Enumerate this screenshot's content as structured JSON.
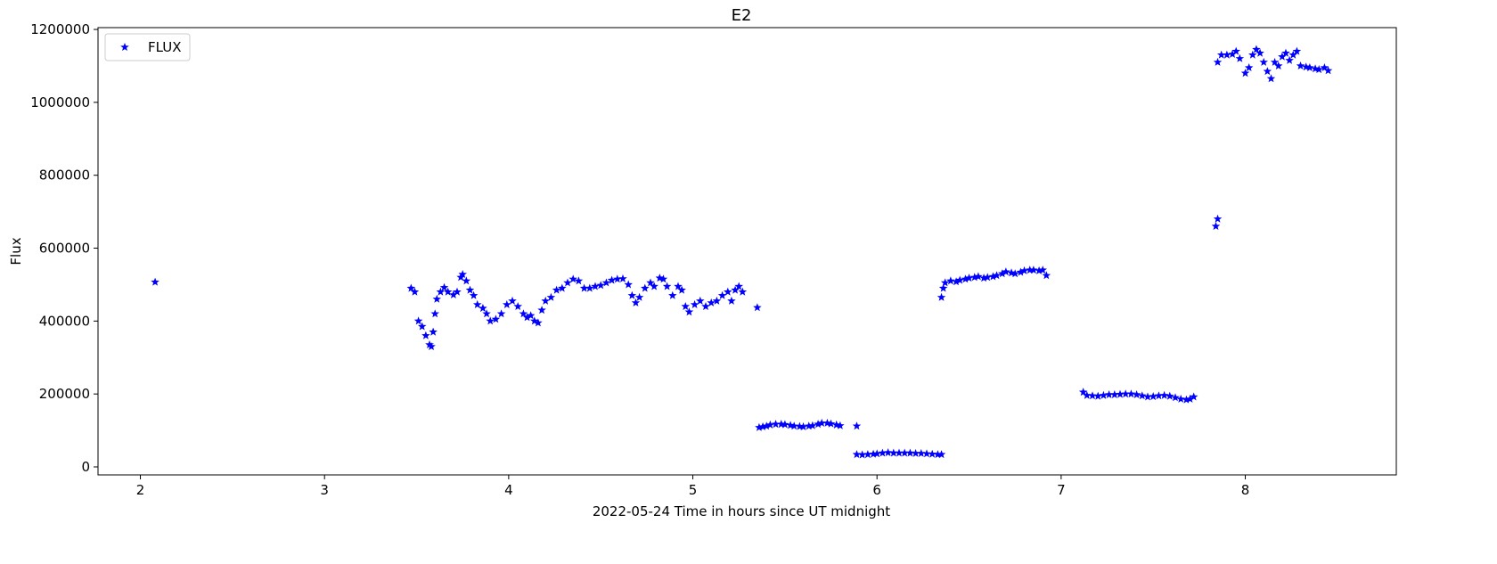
{
  "chart_data": {
    "type": "scatter",
    "title": "E2",
    "xlabel": "2022-05-24  Time in hours since UT midnight",
    "ylabel": "Flux",
    "xlim": [
      1.77,
      8.82
    ],
    "ylim": [
      -22000,
      1205000
    ],
    "xticks": [
      2,
      3,
      4,
      5,
      6,
      7,
      8
    ],
    "xtick_labels": [
      "2",
      "3",
      "4",
      "5",
      "6",
      "7",
      "8"
    ],
    "yticks": [
      0,
      200000,
      400000,
      600000,
      800000,
      1000000,
      1200000
    ],
    "ytick_labels": [
      "0",
      "200000",
      "400000",
      "600000",
      "800000",
      "1000000",
      "1200000"
    ],
    "grid": false,
    "legend": {
      "placement": "top-left",
      "entries": [
        "FLUX"
      ]
    },
    "series": [
      {
        "name": "FLUX",
        "color": "#0000ff",
        "marker": "star",
        "points": [
          [
            2.08,
            507000
          ],
          [
            3.47,
            490000
          ],
          [
            3.49,
            480000
          ],
          [
            3.51,
            400000
          ],
          [
            3.53,
            385000
          ],
          [
            3.55,
            360000
          ],
          [
            3.57,
            335000
          ],
          [
            3.58,
            330000
          ],
          [
            3.59,
            370000
          ],
          [
            3.6,
            420000
          ],
          [
            3.61,
            460000
          ],
          [
            3.63,
            480000
          ],
          [
            3.65,
            492000
          ],
          [
            3.67,
            480000
          ],
          [
            3.7,
            472000
          ],
          [
            3.72,
            480000
          ],
          [
            3.74,
            520000
          ],
          [
            3.75,
            528000
          ],
          [
            3.77,
            510000
          ],
          [
            3.79,
            485000
          ],
          [
            3.81,
            470000
          ],
          [
            3.83,
            445000
          ],
          [
            3.86,
            435000
          ],
          [
            3.88,
            420000
          ],
          [
            3.9,
            400000
          ],
          [
            3.93,
            405000
          ],
          [
            3.96,
            420000
          ],
          [
            3.99,
            445000
          ],
          [
            4.02,
            455000
          ],
          [
            4.05,
            440000
          ],
          [
            4.08,
            420000
          ],
          [
            4.1,
            410000
          ],
          [
            4.12,
            415000
          ],
          [
            4.14,
            400000
          ],
          [
            4.16,
            395000
          ],
          [
            4.18,
            430000
          ],
          [
            4.2,
            455000
          ],
          [
            4.23,
            465000
          ],
          [
            4.26,
            485000
          ],
          [
            4.29,
            490000
          ],
          [
            4.32,
            505000
          ],
          [
            4.35,
            515000
          ],
          [
            4.38,
            510000
          ],
          [
            4.41,
            490000
          ],
          [
            4.44,
            490000
          ],
          [
            4.47,
            495000
          ],
          [
            4.5,
            498000
          ],
          [
            4.53,
            505000
          ],
          [
            4.56,
            512000
          ],
          [
            4.59,
            515000
          ],
          [
            4.62,
            516000
          ],
          [
            4.65,
            500000
          ],
          [
            4.67,
            470000
          ],
          [
            4.69,
            450000
          ],
          [
            4.71,
            465000
          ],
          [
            4.74,
            490000
          ],
          [
            4.77,
            505000
          ],
          [
            4.79,
            495000
          ],
          [
            4.82,
            518000
          ],
          [
            4.84,
            515000
          ],
          [
            4.86,
            495000
          ],
          [
            4.89,
            470000
          ],
          [
            4.92,
            495000
          ],
          [
            4.94,
            485000
          ],
          [
            4.96,
            440000
          ],
          [
            4.98,
            425000
          ],
          [
            5.01,
            445000
          ],
          [
            5.04,
            455000
          ],
          [
            5.07,
            440000
          ],
          [
            5.1,
            450000
          ],
          [
            5.13,
            455000
          ],
          [
            5.16,
            470000
          ],
          [
            5.19,
            480000
          ],
          [
            5.21,
            455000
          ],
          [
            5.23,
            485000
          ],
          [
            5.25,
            495000
          ],
          [
            5.27,
            480000
          ],
          [
            5.35,
            437000
          ],
          [
            5.36,
            108000
          ],
          [
            5.38,
            110000
          ],
          [
            5.4,
            112000
          ],
          [
            5.42,
            115000
          ],
          [
            5.45,
            117000
          ],
          [
            5.48,
            117000
          ],
          [
            5.5,
            116000
          ],
          [
            5.53,
            114000
          ],
          [
            5.55,
            112000
          ],
          [
            5.58,
            111000
          ],
          [
            5.6,
            110000
          ],
          [
            5.63,
            112000
          ],
          [
            5.65,
            113000
          ],
          [
            5.68,
            117000
          ],
          [
            5.7,
            120000
          ],
          [
            5.73,
            120000
          ],
          [
            5.75,
            118000
          ],
          [
            5.78,
            115000
          ],
          [
            5.8,
            113000
          ],
          [
            5.89,
            112000
          ],
          [
            5.89,
            34000
          ],
          [
            5.92,
            33000
          ],
          [
            5.95,
            34000
          ],
          [
            5.98,
            35000
          ],
          [
            6.0,
            36000
          ],
          [
            6.03,
            38000
          ],
          [
            6.06,
            39000
          ],
          [
            6.09,
            38000
          ],
          [
            6.12,
            38000
          ],
          [
            6.15,
            38000
          ],
          [
            6.18,
            38000
          ],
          [
            6.21,
            37000
          ],
          [
            6.24,
            37000
          ],
          [
            6.27,
            36000
          ],
          [
            6.3,
            35000
          ],
          [
            6.33,
            34000
          ],
          [
            6.35,
            34000
          ],
          [
            6.35,
            465000
          ],
          [
            6.36,
            490000
          ],
          [
            6.37,
            505000
          ],
          [
            6.4,
            510000
          ],
          [
            6.43,
            508000
          ],
          [
            6.45,
            512000
          ],
          [
            6.48,
            515000
          ],
          [
            6.5,
            518000
          ],
          [
            6.53,
            520000
          ],
          [
            6.55,
            522000
          ],
          [
            6.58,
            518000
          ],
          [
            6.6,
            520000
          ],
          [
            6.63,
            522000
          ],
          [
            6.65,
            525000
          ],
          [
            6.68,
            530000
          ],
          [
            6.7,
            535000
          ],
          [
            6.73,
            532000
          ],
          [
            6.75,
            530000
          ],
          [
            6.78,
            534000
          ],
          [
            6.8,
            538000
          ],
          [
            6.83,
            540000
          ],
          [
            6.85,
            540000
          ],
          [
            6.88,
            538000
          ],
          [
            6.9,
            540000
          ],
          [
            6.92,
            525000
          ],
          [
            7.12,
            205000
          ],
          [
            7.14,
            196000
          ],
          [
            7.17,
            195000
          ],
          [
            7.2,
            194000
          ],
          [
            7.23,
            196000
          ],
          [
            7.26,
            198000
          ],
          [
            7.29,
            198000
          ],
          [
            7.32,
            199000
          ],
          [
            7.35,
            200000
          ],
          [
            7.38,
            200000
          ],
          [
            7.41,
            198000
          ],
          [
            7.44,
            195000
          ],
          [
            7.47,
            192000
          ],
          [
            7.5,
            193000
          ],
          [
            7.53,
            195000
          ],
          [
            7.56,
            196000
          ],
          [
            7.59,
            194000
          ],
          [
            7.62,
            190000
          ],
          [
            7.65,
            186000
          ],
          [
            7.68,
            184000
          ],
          [
            7.7,
            186000
          ],
          [
            7.72,
            192000
          ],
          [
            7.84,
            660000
          ],
          [
            7.85,
            680000
          ],
          [
            7.85,
            1110000
          ],
          [
            7.87,
            1130000
          ],
          [
            7.9,
            1130000
          ],
          [
            7.93,
            1132000
          ],
          [
            7.95,
            1140000
          ],
          [
            7.97,
            1120000
          ],
          [
            8.0,
            1080000
          ],
          [
            8.02,
            1095000
          ],
          [
            8.04,
            1130000
          ],
          [
            8.06,
            1145000
          ],
          [
            8.08,
            1135000
          ],
          [
            8.1,
            1110000
          ],
          [
            8.12,
            1085000
          ],
          [
            8.14,
            1065000
          ],
          [
            8.16,
            1110000
          ],
          [
            8.18,
            1100000
          ],
          [
            8.2,
            1125000
          ],
          [
            8.22,
            1135000
          ],
          [
            8.24,
            1115000
          ],
          [
            8.26,
            1130000
          ],
          [
            8.28,
            1140000
          ],
          [
            8.3,
            1100000
          ],
          [
            8.33,
            1097000
          ],
          [
            8.35,
            1095000
          ],
          [
            8.38,
            1092000
          ],
          [
            8.4,
            1090000
          ],
          [
            8.43,
            1095000
          ],
          [
            8.45,
            1087000
          ]
        ]
      }
    ]
  }
}
